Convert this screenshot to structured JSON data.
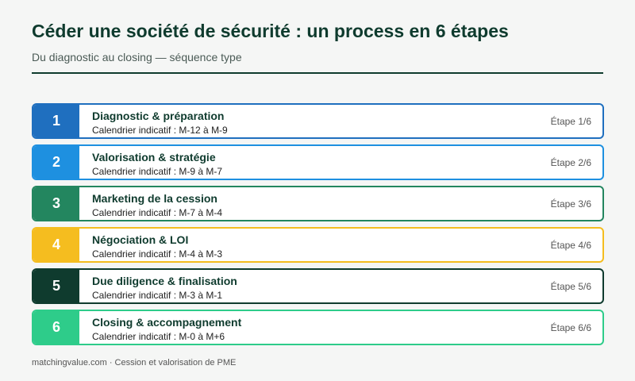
{
  "header": {
    "title": "Céder une société de sécurité : un process en 6 étapes",
    "subtitle": "Du diagnostic au closing — séquence type"
  },
  "steps": [
    {
      "number": "1",
      "label": "Diagnostic & préparation",
      "timing": "Calendrier indicatif : M-12 à M-9",
      "badge": "Étape 1/6",
      "color": "#1f6fbf"
    },
    {
      "number": "2",
      "label": "Valorisation & stratégie",
      "timing": "Calendrier indicatif : M-9 à M-7",
      "badge": "Étape 2/6",
      "color": "#1e90e0"
    },
    {
      "number": "3",
      "label": "Marketing de la cession",
      "timing": "Calendrier indicatif : M-7 à M-4",
      "badge": "Étape 3/6",
      "color": "#23865f"
    },
    {
      "number": "4",
      "label": "Négociation & LOI",
      "timing": "Calendrier indicatif : M-4 à M-3",
      "badge": "Étape 4/6",
      "color": "#f5bd1f"
    },
    {
      "number": "5",
      "label": "Due diligence & finalisation",
      "timing": "Calendrier indicatif : M-3 à M-1",
      "badge": "Étape 5/6",
      "color": "#0f3b2e"
    },
    {
      "number": "6",
      "label": "Closing & accompagnement",
      "timing": "Calendrier indicatif : M-0 à M+6",
      "badge": "Étape 6/6",
      "color": "#2ecc8a"
    }
  ],
  "footer": {
    "text": "matchingvalue.com · Cession et valorisation de PME"
  }
}
